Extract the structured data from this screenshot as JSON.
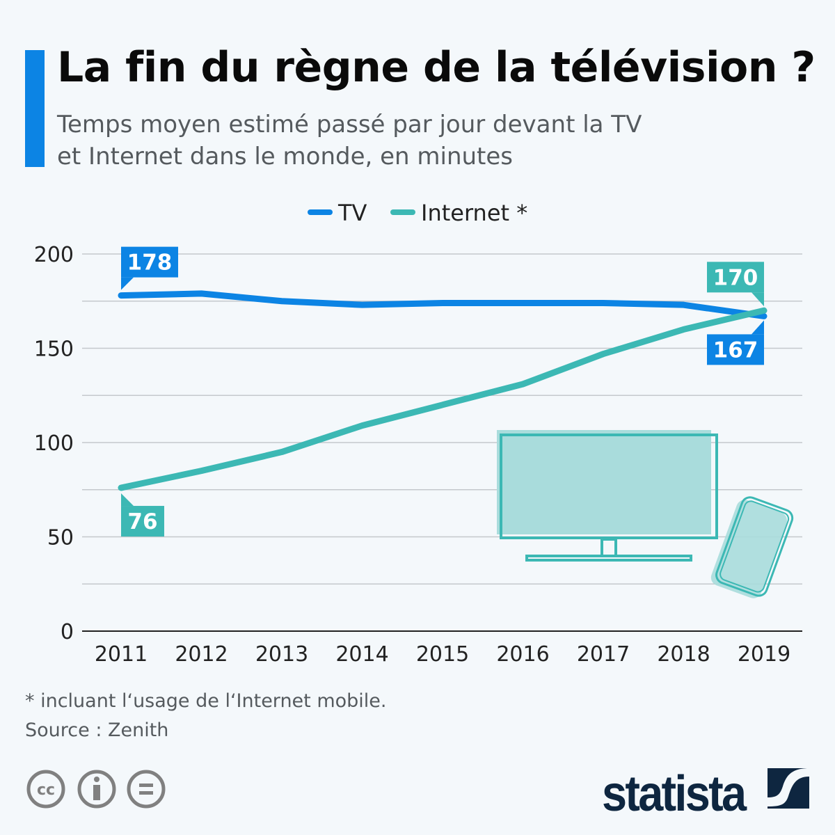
{
  "title": "La fin du règne de la télévision ?",
  "subtitle_line1": "Temps moyen estimé passé par jour devant la TV",
  "subtitle_line2": "et Internet dans le monde, en minutes",
  "footnote": "* incluant l‘usage de l‘Internet mobile.",
  "source": "Source : Zenith",
  "brand": "statista",
  "license_icons": [
    "cc-icon",
    "attribution-icon",
    "no-derivatives-icon"
  ],
  "chart_data": {
    "type": "line",
    "x": [
      "2011",
      "2012",
      "2013",
      "2014",
      "2015",
      "2016",
      "2017",
      "2018",
      "2019"
    ],
    "ylim": [
      0,
      200
    ],
    "yticks": [
      0,
      50,
      100,
      150,
      200
    ],
    "grid": true,
    "legend_position": "top",
    "series": [
      {
        "name": "TV",
        "color": "#0c84e4",
        "values": [
          178,
          179,
          175,
          173,
          174,
          174,
          174,
          173,
          167
        ],
        "labels": {
          "2011": "178",
          "2019": "167"
        }
      },
      {
        "name": "Internet *",
        "color": "#3cb8b4",
        "values": [
          76,
          85,
          95,
          109,
          120,
          131,
          147,
          160,
          170
        ],
        "labels": {
          "2011": "76",
          "2019": "170"
        }
      }
    ]
  }
}
